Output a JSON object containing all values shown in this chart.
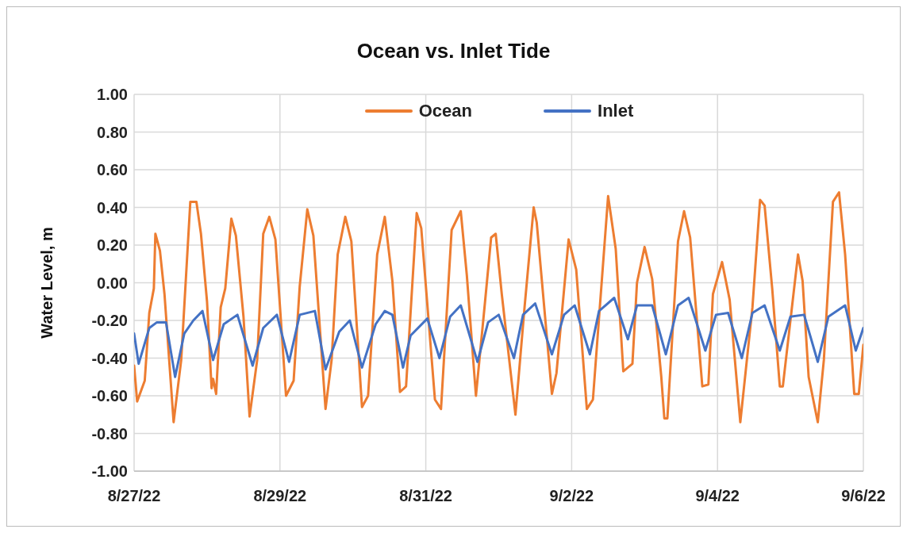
{
  "chart_data": {
    "type": "line",
    "title": "Ocean vs. Inlet Tide",
    "ylabel": "Water Level, m",
    "xlim": [
      "--08-27",
      "--09-06"
    ],
    "xticks": [
      {
        "value": "--08-27",
        "label": "8/27/22"
      },
      {
        "value": "--08-29",
        "label": "8/29/22"
      },
      {
        "value": "--08-31",
        "label": "8/31/22"
      },
      {
        "value": "--09-02",
        "label": "9/2/22"
      },
      {
        "value": "--09-04",
        "label": "9/4/22"
      },
      {
        "value": "--09-06",
        "label": "9/6/22"
      }
    ],
    "ylim": [
      -1,
      1
    ],
    "yticks": [
      {
        "value": -1,
        "label": "-1.00"
      },
      {
        "value": -0.8,
        "label": "-0.80"
      },
      {
        "value": -0.6,
        "label": "-0.60"
      },
      {
        "value": -0.4,
        "label": "-0.40"
      },
      {
        "value": -0.2,
        "label": "-0.20"
      },
      {
        "value": 0,
        "label": "0.00"
      },
      {
        "value": 0.2,
        "label": "0.20"
      },
      {
        "value": 0.4,
        "label": "0.40"
      },
      {
        "value": 0.6,
        "label": "0.60"
      },
      {
        "value": 0.8,
        "label": "0.80"
      },
      {
        "value": 1,
        "label": "1.00"
      }
    ],
    "grid": true,
    "legend": "top",
    "marker": "none",
    "line_style": "solid",
    "series": [
      {
        "name": "Ocean",
        "color": "#ed7d31",
        "x": [
          "--08-27T00:00",
          "--08-27T01:00",
          "--08-27T03:30",
          "--08-27T05:00",
          "--08-27T06:30",
          "--08-27T07:00",
          "--08-27T08:30",
          "--08-27T10:00",
          "--08-27T13:00",
          "--08-27T15:30",
          "--08-27T18:30",
          "--08-27T20:30",
          "--08-27T22:00",
          "--08-28T00:00",
          "--08-28T01:30",
          "--08-28T02:00",
          "--08-28T03:00",
          "--08-28T04:30",
          "--08-28T06:00",
          "--08-28T08:00",
          "--08-28T09:30",
          "--08-28T12:00",
          "--08-28T14:00",
          "--08-28T16:30",
          "--08-28T18:30",
          "--08-28T20:30",
          "--08-28T22:30",
          "--08-29T02:00",
          "--08-29T04:30",
          "--08-29T06:30",
          "--08-29T09:00",
          "--08-29T11:00",
          "--08-29T15:00",
          "--08-29T17:00",
          "--08-29T19:00",
          "--08-29T21:30",
          "--08-29T23:30",
          "--08-30T03:00",
          "--08-30T05:00",
          "--08-30T08:00",
          "--08-30T10:30",
          "--08-30T13:00",
          "--08-30T15:30",
          "--08-30T17:30",
          "--08-30T21:00",
          "--08-30T22:30",
          "--08-31T03:00",
          "--08-31T05:00",
          "--08-31T08:30",
          "--08-31T11:30",
          "--08-31T13:30",
          "--08-31T16:30",
          "--08-31T19:30",
          "--08-31T21:30",
          "--08-31T23:00",
          "--09-01T01:00",
          "--09-01T05:30",
          "--09-01T08:30",
          "--09-01T11:30",
          "--09-01T12:30",
          "--09-01T17:30",
          "--09-01T19:00",
          "--09-01T23:00",
          "--09-02T01:30",
          "--09-02T05:00",
          "--09-02T07:00",
          "--09-02T12:00",
          "--09-02T14:30",
          "--09-02T17:00",
          "--09-02T20:00",
          "--09-02T21:30",
          "--09-03T00:00",
          "--09-03T02:30",
          "--09-03T05:30",
          "--09-03T06:30",
          "--09-03T07:30",
          "--09-03T11:00",
          "--09-03T13:00",
          "--09-03T15:00",
          "--09-03T19:00",
          "--09-03T21:00",
          "--09-03T22:30",
          "--09-04T01:30",
          "--09-04T04:00",
          "--09-04T07:30",
          "--09-04T11:30",
          "--09-04T14:00",
          "--09-04T15:30",
          "--09-04T18:00",
          "--09-04T20:30",
          "--09-04T21:30",
          "--09-05T01:00",
          "--09-05T02:30",
          "--09-05T04:00",
          "--09-05T06:00",
          "--09-05T09:00",
          "--09-05T11:00",
          "--09-05T14:00",
          "--09-05T16:00",
          "--09-05T18:00",
          "--09-05T21:00",
          "--09-05T22:30",
          "--09-06T00:00"
        ],
        "values": [
          -0.44,
          -0.63,
          -0.52,
          -0.16,
          -0.03,
          0.26,
          0.17,
          -0.06,
          -0.74,
          -0.41,
          0.43,
          0.43,
          0.26,
          -0.1,
          -0.56,
          -0.51,
          -0.59,
          -0.13,
          -0.03,
          0.34,
          0.25,
          -0.18,
          -0.71,
          -0.41,
          0.26,
          0.35,
          0.23,
          -0.6,
          -0.52,
          -0.02,
          0.39,
          0.25,
          -0.67,
          -0.41,
          0.15,
          0.35,
          0.22,
          -0.66,
          -0.6,
          0.15,
          0.35,
          0.01,
          -0.58,
          -0.55,
          0.37,
          0.29,
          -0.62,
          -0.67,
          0.28,
          0.38,
          0.04,
          -0.6,
          -0.1,
          0.24,
          0.26,
          -0.06,
          -0.7,
          -0.13,
          0.4,
          0.32,
          -0.59,
          -0.48,
          0.23,
          0.07,
          -0.67,
          -0.62,
          0.46,
          0.18,
          -0.47,
          -0.43,
          0,
          0.19,
          0.02,
          -0.5,
          -0.72,
          -0.72,
          0.22,
          0.38,
          0.24,
          -0.55,
          -0.54,
          -0.06,
          0.11,
          -0.09,
          -0.74,
          -0.13,
          0.44,
          0.41,
          -0.03,
          -0.55,
          -0.55,
          -0.06,
          0.15,
          0.01,
          -0.5,
          -0.74,
          -0.41,
          0.43,
          0.48,
          0.15,
          -0.59,
          -0.59,
          -0.33
        ]
      },
      {
        "name": "Inlet",
        "color": "#4472c4",
        "x": [
          "--08-27T00:00",
          "--08-27T01:30",
          "--08-27T05:00",
          "--08-27T07:30",
          "--08-27T10:30",
          "--08-27T13:30",
          "--08-27T16:30",
          "--08-27T19:30",
          "--08-27T22:30",
          "--08-28T02:00",
          "--08-28T05:30",
          "--08-28T10:00",
          "--08-28T15:00",
          "--08-28T18:30",
          "--08-28T23:00",
          "--08-29T03:00",
          "--08-29T06:30",
          "--08-29T11:30",
          "--08-29T15:00",
          "--08-29T19:30",
          "--08-29T23:00",
          "--08-30T03:00",
          "--08-30T07:30",
          "--08-30T10:30",
          "--08-30T13:00",
          "--08-30T16:30",
          "--08-30T19:00",
          "--08-31T00:30",
          "--08-31T04:30",
          "--08-31T08:00",
          "--08-31T11:30",
          "--08-31T17:00",
          "--08-31T20:30",
          "--09-01T00:00",
          "--09-01T05:00",
          "--09-01T08:00",
          "--09-01T12:00",
          "--09-01T17:30",
          "--09-01T21:30",
          "--09-02T01:00",
          "--09-02T06:00",
          "--09-02T09:00",
          "--09-02T14:00",
          "--09-02T18:30",
          "--09-02T21:30",
          "--09-03T02:30",
          "--09-03T07:00",
          "--09-03T11:00",
          "--09-03T14:30",
          "--09-03T20:00",
          "--09-03T23:30",
          "--09-04T03:30",
          "--09-04T08:00",
          "--09-04T11:30",
          "--09-04T15:30",
          "--09-04T20:30",
          "--09-05T00:00",
          "--09-05T04:30",
          "--09-05T09:00",
          "--09-05T12:30",
          "--09-05T18:00",
          "--09-05T21:30",
          "--09-06T00:00"
        ],
        "values": [
          -0.27,
          -0.43,
          -0.24,
          -0.21,
          -0.21,
          -0.5,
          -0.27,
          -0.2,
          -0.15,
          -0.41,
          -0.22,
          -0.17,
          -0.44,
          -0.24,
          -0.17,
          -0.42,
          -0.17,
          -0.15,
          -0.46,
          -0.26,
          -0.2,
          -0.45,
          -0.22,
          -0.15,
          -0.17,
          -0.45,
          -0.28,
          -0.19,
          -0.4,
          -0.18,
          -0.12,
          -0.42,
          -0.21,
          -0.17,
          -0.4,
          -0.17,
          -0.11,
          -0.38,
          -0.17,
          -0.12,
          -0.38,
          -0.15,
          -0.08,
          -0.3,
          -0.12,
          -0.12,
          -0.38,
          -0.12,
          -0.08,
          -0.36,
          -0.17,
          -0.16,
          -0.4,
          -0.16,
          -0.12,
          -0.36,
          -0.18,
          -0.17,
          -0.42,
          -0.18,
          -0.12,
          -0.36,
          -0.24
        ]
      }
    ]
  }
}
